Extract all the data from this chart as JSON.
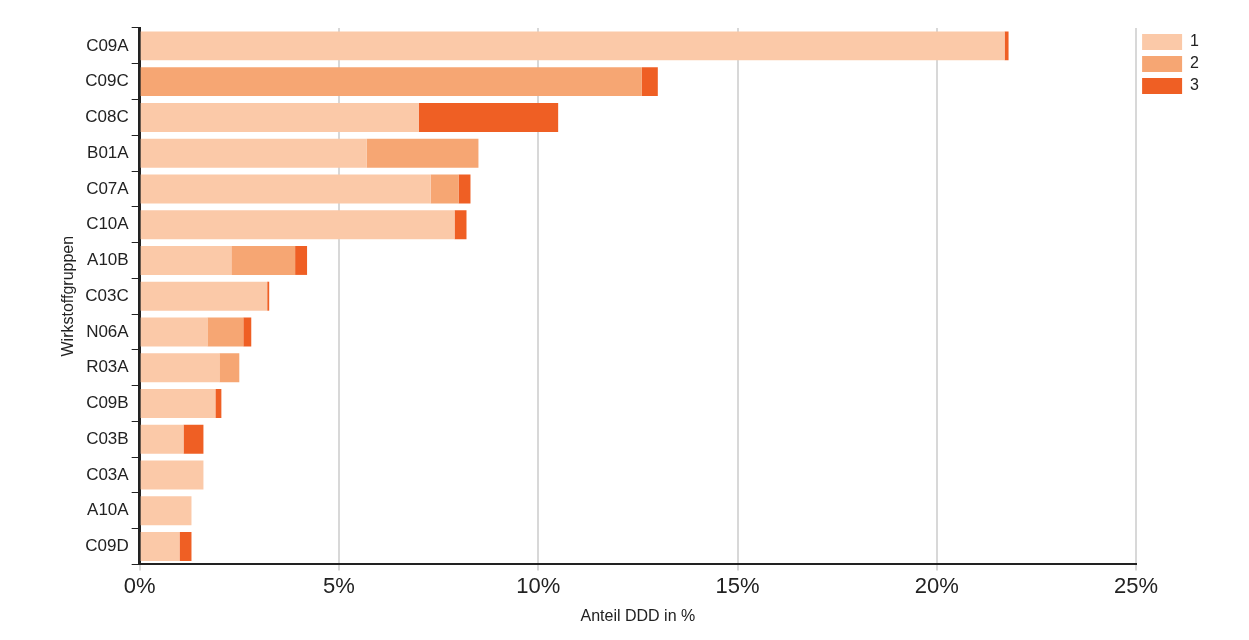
{
  "chart_data": {
    "type": "bar",
    "orientation": "horizontal",
    "stacked": true,
    "xlabel": "Anteil DDD in %",
    "ylabel": "Wirkstoffgruppen",
    "categories": [
      "C09A",
      "C09C",
      "C08C",
      "B01A",
      "C07A",
      "C10A",
      "A10B",
      "C03C",
      "N06A",
      "R03A",
      "C09B",
      "C03B",
      "C03A",
      "A10A",
      "C09D"
    ],
    "series": [
      {
        "name": "1",
        "color": "#fbc9a8",
        "values": [
          21.7,
          0,
          7.0,
          5.7,
          7.3,
          7.9,
          2.3,
          3.2,
          1.7,
          2.0,
          1.9,
          1.1,
          1.6,
          1.3,
          1.0
        ]
      },
      {
        "name": "2",
        "color": "#f6a673",
        "values": [
          0,
          12.6,
          0,
          2.8,
          0.7,
          0,
          1.6,
          0,
          0.9,
          0.5,
          0,
          0,
          0,
          0,
          0
        ]
      },
      {
        "name": "3",
        "color": "#ef5f24",
        "values": [
          0.1,
          0.4,
          3.5,
          0,
          0.3,
          0.3,
          0.3,
          0.05,
          0.2,
          0,
          0.15,
          0.5,
          0,
          0,
          0.3
        ]
      }
    ],
    "xlim": [
      0,
      25
    ],
    "xticks": [
      {
        "value": 0,
        "label": "0%"
      },
      {
        "value": 5,
        "label": "5%"
      },
      {
        "value": 10,
        "label": "10%"
      },
      {
        "value": 15,
        "label": "15%"
      },
      {
        "value": 20,
        "label": "20%"
      },
      {
        "value": 25,
        "label": "25%"
      }
    ],
    "grid": "x",
    "legend": "top right"
  }
}
